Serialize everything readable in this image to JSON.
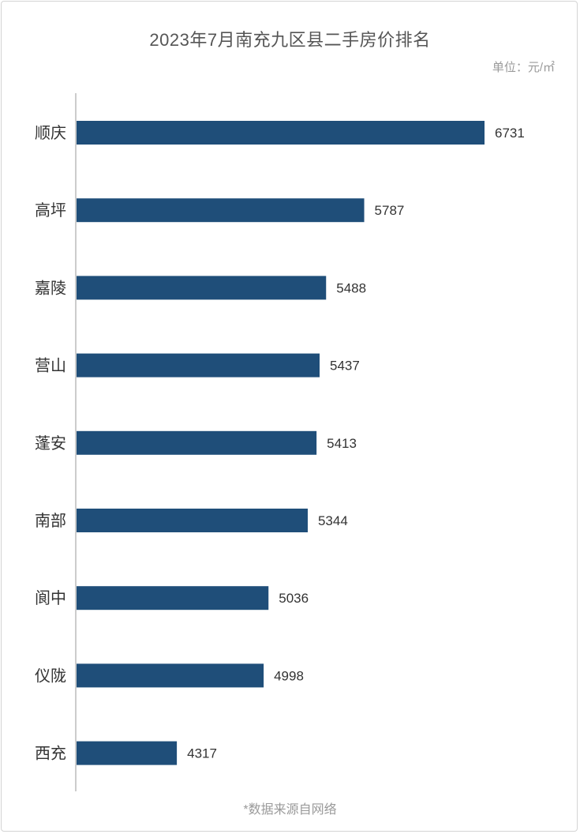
{
  "header": {
    "title": "2023年7月南充九区县二手房价排名",
    "unit": "单位：元/㎡"
  },
  "footer": {
    "source": "*数据来源自网络"
  },
  "colors": {
    "bar": "#1f4e79",
    "axis": "#cccccc",
    "text": "#333333"
  },
  "chart_data": {
    "type": "bar",
    "orientation": "horizontal",
    "title": "2023年7月南充九区县二手房价排名",
    "unit": "元/㎡",
    "categories": [
      "顺庆",
      "高坪",
      "嘉陵",
      "营山",
      "蓬安",
      "南部",
      "阆中",
      "仪陇",
      "西充"
    ],
    "values": [
      6731,
      5787,
      5488,
      5437,
      5413,
      5344,
      5036,
      4998,
      4317
    ],
    "xlim": [
      3530,
      6731
    ],
    "grid": false,
    "legend": "none"
  }
}
